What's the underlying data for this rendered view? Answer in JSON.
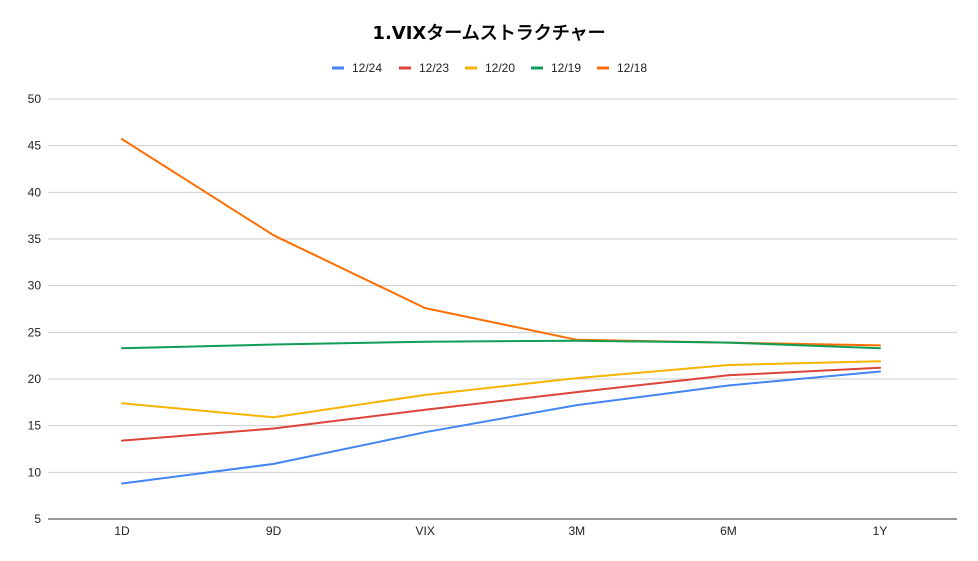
{
  "chart_data": {
    "type": "line",
    "title": "1.VIXタームストラクチャー",
    "xlabel": "",
    "ylabel": "",
    "categories": [
      "1D",
      "9D",
      "VIX",
      "3M",
      "6M",
      "1Y"
    ],
    "ylim": [
      5,
      50
    ],
    "yticks": [
      5,
      10,
      15,
      20,
      25,
      30,
      35,
      40,
      45,
      50
    ],
    "grid": true,
    "legend_position": "top",
    "series": [
      {
        "name": "12/24",
        "color": "#4285f4",
        "values": [
          8.8,
          10.9,
          14.3,
          17.2,
          19.3,
          20.8
        ]
      },
      {
        "name": "12/23",
        "color": "#db4437",
        "values": [
          13.4,
          14.7,
          16.7,
          18.6,
          20.4,
          21.2
        ]
      },
      {
        "name": "12/20",
        "color": "#f4b400",
        "values": [
          17.4,
          15.9,
          18.3,
          20.1,
          21.5,
          21.9
        ]
      },
      {
        "name": "12/19",
        "color": "#0f9d58",
        "values": [
          23.3,
          23.7,
          24.0,
          24.1,
          23.9,
          23.3
        ]
      },
      {
        "name": "12/18",
        "color": "#ff6d00",
        "values": [
          45.7,
          35.4,
          27.6,
          24.2,
          23.9,
          23.6
        ]
      }
    ]
  }
}
